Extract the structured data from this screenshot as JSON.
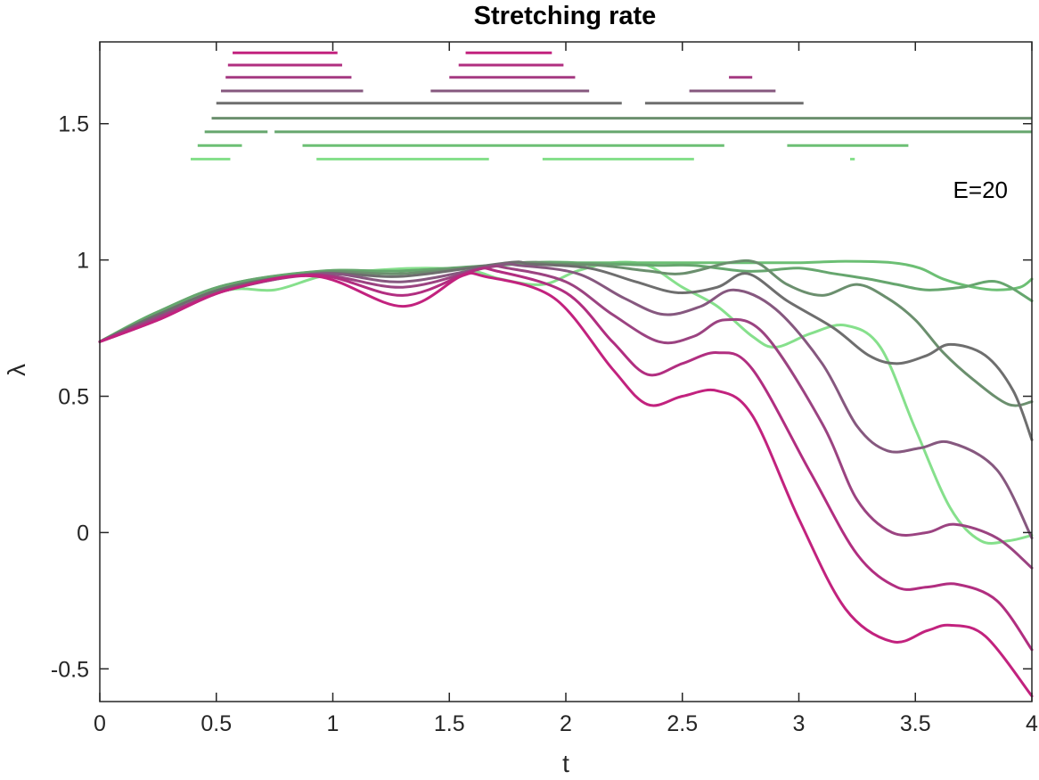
{
  "chart_data": {
    "type": "line",
    "title": "Stretching rate",
    "xlabel": "t",
    "ylabel": "λ",
    "xlim": [
      0,
      4
    ],
    "ylim": [
      -0.62,
      1.8
    ],
    "xticks": [
      0,
      0.5,
      1,
      1.5,
      2,
      2.5,
      3,
      3.5,
      4
    ],
    "xtick_labels": [
      "0",
      "0.5",
      "1",
      "1.5",
      "2",
      "2.5",
      "3",
      "3.5",
      "4"
    ],
    "yticks": [
      -0.5,
      0,
      0.5,
      1,
      1.5
    ],
    "ytick_labels": [
      "-0.5",
      "0",
      "0.5",
      "1",
      "1.5"
    ],
    "grid": false,
    "annotation": "E=20",
    "series": [
      {
        "color": "#c2227e",
        "points": [
          [
            0,
            0.7
          ],
          [
            0.25,
            0.78
          ],
          [
            0.55,
            0.89
          ],
          [
            0.93,
            0.94
          ],
          [
            1.3,
            0.83
          ],
          [
            1.55,
            0.94
          ],
          [
            1.65,
            0.94
          ],
          [
            1.95,
            0.86
          ],
          [
            2.2,
            0.6
          ],
          [
            2.35,
            0.47
          ],
          [
            2.5,
            0.5
          ],
          [
            2.65,
            0.52
          ],
          [
            2.8,
            0.43
          ],
          [
            3.0,
            0.05
          ],
          [
            3.2,
            -0.28
          ],
          [
            3.4,
            -0.4
          ],
          [
            3.55,
            -0.36
          ],
          [
            3.65,
            -0.34
          ],
          [
            3.8,
            -0.38
          ],
          [
            4.0,
            -0.6
          ]
        ]
      },
      {
        "color": "#b12e80",
        "points": [
          [
            0,
            0.7
          ],
          [
            0.25,
            0.78
          ],
          [
            0.55,
            0.89
          ],
          [
            0.93,
            0.945
          ],
          [
            1.3,
            0.87
          ],
          [
            1.6,
            0.96
          ],
          [
            1.7,
            0.96
          ],
          [
            2.0,
            0.88
          ],
          [
            2.2,
            0.7
          ],
          [
            2.35,
            0.58
          ],
          [
            2.5,
            0.62
          ],
          [
            2.65,
            0.66
          ],
          [
            2.8,
            0.6
          ],
          [
            3.05,
            0.22
          ],
          [
            3.25,
            -0.08
          ],
          [
            3.42,
            -0.2
          ],
          [
            3.55,
            -0.2
          ],
          [
            3.68,
            -0.19
          ],
          [
            3.85,
            -0.25
          ],
          [
            4.0,
            -0.43
          ]
        ]
      },
      {
        "color": "#9b4381",
        "points": [
          [
            0,
            0.7
          ],
          [
            0.25,
            0.79
          ],
          [
            0.55,
            0.89
          ],
          [
            0.93,
            0.945
          ],
          [
            1.3,
            0.9
          ],
          [
            1.65,
            0.97
          ],
          [
            1.75,
            0.97
          ],
          [
            2.0,
            0.92
          ],
          [
            2.2,
            0.8
          ],
          [
            2.4,
            0.7
          ],
          [
            2.55,
            0.72
          ],
          [
            2.68,
            0.78
          ],
          [
            2.85,
            0.73
          ],
          [
            3.1,
            0.4
          ],
          [
            3.25,
            0.12
          ],
          [
            3.4,
            0.0
          ],
          [
            3.55,
            0.0
          ],
          [
            3.67,
            0.03
          ],
          [
            3.85,
            -0.02
          ],
          [
            4.0,
            -0.13
          ]
        ]
      },
      {
        "color": "#86587f",
        "points": [
          [
            0,
            0.7
          ],
          [
            0.25,
            0.79
          ],
          [
            0.55,
            0.89
          ],
          [
            0.95,
            0.95
          ],
          [
            1.3,
            0.92
          ],
          [
            1.7,
            0.98
          ],
          [
            1.8,
            0.98
          ],
          [
            2.05,
            0.95
          ],
          [
            2.25,
            0.86
          ],
          [
            2.42,
            0.8
          ],
          [
            2.58,
            0.83
          ],
          [
            2.72,
            0.89
          ],
          [
            2.9,
            0.82
          ],
          [
            3.1,
            0.62
          ],
          [
            3.25,
            0.39
          ],
          [
            3.38,
            0.3
          ],
          [
            3.52,
            0.31
          ],
          [
            3.65,
            0.33
          ],
          [
            3.85,
            0.23
          ],
          [
            4.0,
            -0.02
          ]
        ]
      },
      {
        "color": "#6e6e6e",
        "points": [
          [
            0,
            0.7
          ],
          [
            0.25,
            0.8
          ],
          [
            0.55,
            0.9
          ],
          [
            0.95,
            0.95
          ],
          [
            1.3,
            0.94
          ],
          [
            1.75,
            0.99
          ],
          [
            1.85,
            0.985
          ],
          [
            2.1,
            0.97
          ],
          [
            2.3,
            0.92
          ],
          [
            2.48,
            0.88
          ],
          [
            2.65,
            0.9
          ],
          [
            2.78,
            0.95
          ],
          [
            2.95,
            0.85
          ],
          [
            3.15,
            0.75
          ],
          [
            3.3,
            0.65
          ],
          [
            3.42,
            0.62
          ],
          [
            3.55,
            0.65
          ],
          [
            3.65,
            0.69
          ],
          [
            3.8,
            0.65
          ],
          [
            3.92,
            0.52
          ],
          [
            4.0,
            0.34
          ]
        ]
      },
      {
        "color": "#6b8f6e",
        "points": [
          [
            0,
            0.7
          ],
          [
            0.25,
            0.8
          ],
          [
            0.55,
            0.9
          ],
          [
            0.96,
            0.955
          ],
          [
            1.3,
            0.95
          ],
          [
            1.8,
            0.99
          ],
          [
            1.95,
            0.985
          ],
          [
            2.15,
            0.98
          ],
          [
            2.35,
            0.96
          ],
          [
            2.5,
            0.95
          ],
          [
            2.7,
            0.99
          ],
          [
            2.82,
            0.99
          ],
          [
            2.95,
            0.91
          ],
          [
            3.1,
            0.87
          ],
          [
            3.25,
            0.91
          ],
          [
            3.38,
            0.86
          ],
          [
            3.5,
            0.78
          ],
          [
            3.62,
            0.66
          ],
          [
            3.75,
            0.56
          ],
          [
            3.9,
            0.47
          ],
          [
            4.0,
            0.48
          ]
        ]
      },
      {
        "color": "#66a66e",
        "points": [
          [
            0,
            0.7
          ],
          [
            0.25,
            0.81
          ],
          [
            0.55,
            0.91
          ],
          [
            0.96,
            0.96
          ],
          [
            1.3,
            0.96
          ],
          [
            1.85,
            0.99
          ],
          [
            2.0,
            0.99
          ],
          [
            2.2,
            0.985
          ],
          [
            2.4,
            0.98
          ],
          [
            2.55,
            0.98
          ],
          [
            2.75,
            0.96
          ],
          [
            2.85,
            0.96
          ],
          [
            3.0,
            0.97
          ],
          [
            3.15,
            0.95
          ],
          [
            3.3,
            0.93
          ],
          [
            3.42,
            0.91
          ],
          [
            3.55,
            0.89
          ],
          [
            3.7,
            0.9
          ],
          [
            3.85,
            0.92
          ],
          [
            4.0,
            0.85
          ]
        ]
      },
      {
        "color": "#6cbf74",
        "points": [
          [
            0,
            0.7
          ],
          [
            0.25,
            0.81
          ],
          [
            0.55,
            0.91
          ],
          [
            0.97,
            0.96
          ],
          [
            1.3,
            0.96
          ],
          [
            1.9,
            0.99
          ],
          [
            2.05,
            0.99
          ],
          [
            2.3,
            0.99
          ],
          [
            2.55,
            0.99
          ],
          [
            2.8,
            0.99
          ],
          [
            3.0,
            0.99
          ],
          [
            3.2,
            0.995
          ],
          [
            3.4,
            0.99
          ],
          [
            3.52,
            0.97
          ],
          [
            3.62,
            0.93
          ],
          [
            3.75,
            0.9
          ],
          [
            3.85,
            0.89
          ],
          [
            3.95,
            0.9
          ],
          [
            4.0,
            0.93
          ]
        ]
      },
      {
        "color": "#86e08c",
        "points": [
          [
            0,
            0.7
          ],
          [
            0.25,
            0.81
          ],
          [
            0.55,
            0.89
          ],
          [
            0.75,
            0.89
          ],
          [
            0.95,
            0.94
          ],
          [
            1.15,
            0.96
          ],
          [
            1.4,
            0.97
          ],
          [
            1.6,
            0.96
          ],
          [
            1.72,
            0.93
          ],
          [
            1.9,
            0.91
          ],
          [
            2.05,
            0.96
          ],
          [
            2.2,
            0.99
          ],
          [
            2.35,
            0.98
          ],
          [
            2.5,
            0.9
          ],
          [
            2.65,
            0.83
          ],
          [
            2.8,
            0.72
          ],
          [
            2.9,
            0.68
          ],
          [
            3.05,
            0.73
          ],
          [
            3.2,
            0.76
          ],
          [
            3.35,
            0.68
          ],
          [
            3.5,
            0.38
          ],
          [
            3.65,
            0.09
          ],
          [
            3.78,
            -0.03
          ],
          [
            3.9,
            -0.03
          ],
          [
            4.0,
            -0.01
          ]
        ]
      }
    ],
    "segments": [
      {
        "color": "#c2227e",
        "y": 1.76,
        "ranges": [
          [
            0.57,
            1.02
          ],
          [
            1.57,
            1.94
          ]
        ]
      },
      {
        "color": "#b12e80",
        "y": 1.715,
        "ranges": [
          [
            0.55,
            1.04
          ],
          [
            1.54,
            1.99
          ]
        ]
      },
      {
        "color": "#a53a82",
        "y": 1.67,
        "ranges": [
          [
            0.54,
            1.08
          ],
          [
            1.5,
            2.04
          ],
          [
            2.7,
            2.8
          ]
        ]
      },
      {
        "color": "#86587f",
        "y": 1.62,
        "ranges": [
          [
            0.52,
            1.13
          ],
          [
            1.42,
            2.1
          ],
          [
            2.53,
            2.9
          ]
        ]
      },
      {
        "color": "#6e6e6e",
        "y": 1.575,
        "ranges": [
          [
            0.5,
            2.24
          ],
          [
            2.34,
            3.02
          ]
        ]
      },
      {
        "color": "#6b8f6e",
        "y": 1.52,
        "ranges": [
          [
            0.48,
            4.0
          ]
        ]
      },
      {
        "color": "#66a66e",
        "y": 1.47,
        "ranges": [
          [
            0.45,
            0.72
          ],
          [
            0.75,
            4.0
          ]
        ]
      },
      {
        "color": "#6cbf74",
        "y": 1.42,
        "ranges": [
          [
            0.42,
            0.61
          ],
          [
            0.87,
            2.68
          ],
          [
            2.95,
            3.47
          ]
        ]
      },
      {
        "color": "#86e08c",
        "y": 1.37,
        "ranges": [
          [
            0.39,
            0.56
          ],
          [
            0.93,
            1.67
          ],
          [
            1.9,
            2.55
          ],
          [
            3.22,
            3.24
          ]
        ]
      }
    ]
  }
}
